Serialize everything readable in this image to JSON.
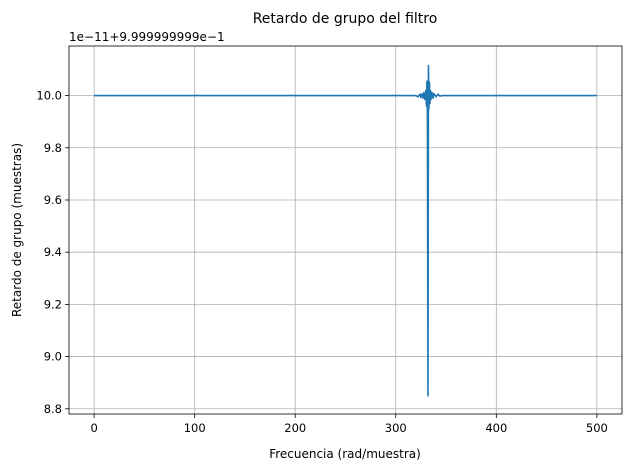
{
  "chart_data": {
    "type": "line",
    "title": "Retardo de grupo del filtro",
    "xlabel": "Frecuencia (rad/muestra)",
    "ylabel": "Retardo de grupo (muestras)",
    "y_offset_text": "1e−11+9.999999999e−1",
    "xlim": [
      -25,
      525
    ],
    "ylim": [
      8.78,
      10.19
    ],
    "x_ticks": [
      0,
      100,
      200,
      300,
      400,
      500
    ],
    "x_tick_labels": [
      "0",
      "100",
      "200",
      "300",
      "400",
      "500"
    ],
    "y_ticks": [
      8.8,
      9.0,
      9.2,
      9.4,
      9.6,
      9.8,
      10.0
    ],
    "y_tick_labels": [
      "8.8",
      "9.0",
      "9.2",
      "9.4",
      "9.6",
      "9.8",
      "10.0"
    ],
    "grid": true,
    "colors": {
      "series": "#1f77b4"
    },
    "series": [
      {
        "x": [
          0,
          320,
          322,
          324,
          325,
          326,
          327,
          328,
          329,
          330,
          330.5,
          331,
          331.5,
          332,
          332.5,
          333,
          333.5,
          334,
          334.5,
          335,
          336,
          337,
          338,
          340,
          342,
          344,
          346,
          500
        ],
        "y": [
          10.0,
          10.0,
          9.995,
          10.005,
          9.993,
          10.007,
          9.99,
          10.012,
          9.985,
          10.02,
          9.96,
          10.055,
          9.9,
          8.85,
          10.115,
          9.95,
          10.05,
          9.97,
          10.02,
          9.985,
          10.012,
          9.99,
          10.008,
          9.995,
          10.005,
          9.998,
          10.0,
          10.0
        ]
      }
    ]
  }
}
